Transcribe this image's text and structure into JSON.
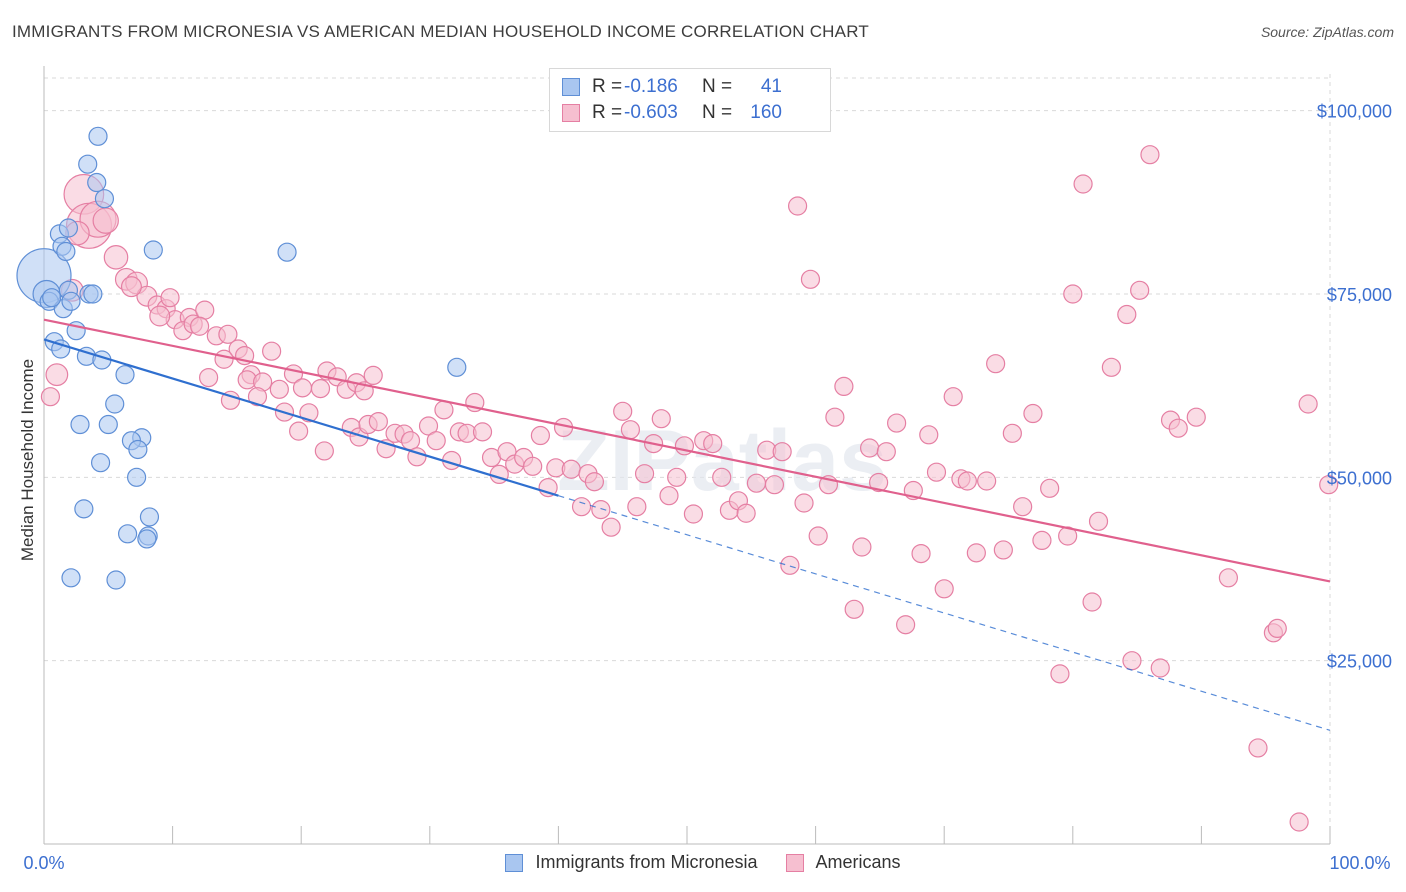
{
  "title": "IMMIGRANTS FROM MICRONESIA VS AMERICAN MEDIAN HOUSEHOLD INCOME CORRELATION CHART",
  "source": "Source: ZipAtlas.com",
  "watermark": "ZIPatlas",
  "colors": {
    "blue_fill": "#a9c6f0",
    "blue_stroke": "#5f8fd6",
    "blue_line": "#2f6fcf",
    "pink_fill": "#f6bfd0",
    "pink_stroke": "#e57fa3",
    "pink_line": "#e0608d",
    "tick_text": "#3c6fd0",
    "grid": "#d9d9d9"
  },
  "legend_top": {
    "rows": [
      {
        "r_label": "R =",
        "r_value": "-0.186",
        "n_label": "N =",
        "n_value": "41"
      },
      {
        "r_label": "R =",
        "r_value": "-0.603",
        "n_label": "N =",
        "n_value": "160"
      }
    ]
  },
  "legend_bottom": {
    "items": [
      {
        "label": "Immigrants from Micronesia"
      },
      {
        "label": "Americans"
      }
    ]
  },
  "chart_data": {
    "type": "scatter",
    "title": "IMMIGRANTS FROM MICRONESIA VS AMERICAN MEDIAN HOUSEHOLD INCOME CORRELATION CHART",
    "xlabel": "",
    "ylabel": "Median Household Income",
    "xlim": [
      0,
      100
    ],
    "ylim": [
      0,
      105000
    ],
    "x_tick_labels": [
      "0.0%",
      "100.0%"
    ],
    "y_ticks": [
      25000,
      50000,
      75000,
      100000
    ],
    "y_tick_labels": [
      "$25,000",
      "$50,000",
      "$75,000",
      "$100,000"
    ],
    "grid": true,
    "legend_position": "top-center and bottom",
    "series": [
      {
        "name": "Immigrants from Micronesia",
        "r": -0.186,
        "n": 41,
        "trend": {
          "x0": 0,
          "y0": 68800,
          "x1": 40,
          "y1": 47500,
          "dash_to_x": 100,
          "dash_y": 15500
        },
        "points": [
          [
            0.0,
            77500,
            3
          ],
          [
            0.2,
            75000,
            1.5
          ],
          [
            0.4,
            74000,
            1
          ],
          [
            1.2,
            83200,
            1
          ],
          [
            1.4,
            81500,
            1
          ],
          [
            1.7,
            80800,
            1
          ],
          [
            1.9,
            75500,
            1
          ],
          [
            1.5,
            73000,
            1
          ],
          [
            2.1,
            74000,
            1
          ],
          [
            2.5,
            70000,
            1
          ],
          [
            0.8,
            68500,
            1
          ],
          [
            1.3,
            67500,
            1
          ],
          [
            3.3,
            66500,
            1
          ],
          [
            4.5,
            66000,
            1
          ],
          [
            6.3,
            64000,
            1
          ],
          [
            3.5,
            75000,
            1
          ],
          [
            3.8,
            75000,
            1
          ],
          [
            4.2,
            96500,
            1
          ],
          [
            3.4,
            92700,
            1
          ],
          [
            4.1,
            90200,
            1
          ],
          [
            4.7,
            88000,
            1
          ],
          [
            8.5,
            81000,
            1
          ],
          [
            18.9,
            80700,
            1
          ],
          [
            32.1,
            65000,
            1
          ],
          [
            5.5,
            60000,
            1
          ],
          [
            2.8,
            57200,
            1
          ],
          [
            5.0,
            57200,
            1
          ],
          [
            7.6,
            55400,
            1
          ],
          [
            6.8,
            55000,
            1
          ],
          [
            7.3,
            53800,
            1
          ],
          [
            4.4,
            52000,
            1
          ],
          [
            7.2,
            50000,
            1
          ],
          [
            3.1,
            45700,
            1
          ],
          [
            8.2,
            44600,
            1
          ],
          [
            8.1,
            42000,
            1
          ],
          [
            6.5,
            42300,
            1
          ],
          [
            2.1,
            36300,
            1
          ],
          [
            5.6,
            36000,
            1
          ],
          [
            8.0,
            41600,
            1
          ],
          [
            1.9,
            84000,
            1
          ],
          [
            0.6,
            74500,
            1
          ]
        ]
      },
      {
        "name": "Americans",
        "r": -0.603,
        "n": 160,
        "trend": {
          "x0": 0,
          "y0": 71500,
          "x1": 100,
          "y1": 35800
        },
        "points": [
          [
            3.1,
            88600,
            2.2
          ],
          [
            3.5,
            84300,
            2.5
          ],
          [
            4.2,
            85200,
            2
          ],
          [
            4.8,
            85000,
            1.4
          ],
          [
            2.6,
            83300,
            1.3
          ],
          [
            5.6,
            80000,
            1.3
          ],
          [
            6.4,
            77000,
            1.2
          ],
          [
            7.2,
            76500,
            1.2
          ],
          [
            8.0,
            74700,
            1.1
          ],
          [
            8.8,
            73500,
            1
          ],
          [
            9.5,
            73000,
            1
          ],
          [
            10.2,
            71500,
            1
          ],
          [
            11.3,
            71800,
            1
          ],
          [
            12.5,
            72800,
            1
          ],
          [
            10.8,
            70000,
            1
          ],
          [
            11.6,
            70900,
            1
          ],
          [
            12.1,
            70600,
            1
          ],
          [
            13.4,
            69300,
            1
          ],
          [
            14.3,
            69500,
            1
          ],
          [
            15.1,
            67500,
            1
          ],
          [
            14.0,
            66100,
            1
          ],
          [
            15.6,
            66600,
            1
          ],
          [
            17.7,
            67200,
            1
          ],
          [
            16.1,
            64000,
            1
          ],
          [
            12.8,
            63600,
            1
          ],
          [
            15.8,
            63300,
            1
          ],
          [
            17.0,
            63000,
            1
          ],
          [
            18.3,
            62000,
            1
          ],
          [
            19.4,
            64100,
            1
          ],
          [
            20.1,
            62200,
            1
          ],
          [
            21.5,
            62100,
            1
          ],
          [
            22.0,
            64500,
            1
          ],
          [
            22.8,
            63700,
            1
          ],
          [
            23.5,
            62000,
            1
          ],
          [
            24.3,
            62900,
            1
          ],
          [
            24.9,
            61800,
            1
          ],
          [
            25.6,
            63900,
            1
          ],
          [
            18.7,
            58900,
            1
          ],
          [
            19.8,
            56300,
            1
          ],
          [
            23.9,
            56800,
            1
          ],
          [
            24.5,
            55500,
            1
          ],
          [
            25.2,
            57200,
            1
          ],
          [
            26.0,
            57600,
            1
          ],
          [
            26.6,
            53900,
            1
          ],
          [
            27.3,
            56000,
            1
          ],
          [
            28.0,
            55900,
            1
          ],
          [
            28.5,
            55000,
            1
          ],
          [
            29.0,
            52800,
            1
          ],
          [
            29.9,
            57000,
            1
          ],
          [
            30.5,
            55000,
            1
          ],
          [
            31.1,
            59200,
            1
          ],
          [
            31.7,
            52300,
            1
          ],
          [
            32.3,
            56200,
            1
          ],
          [
            32.9,
            56000,
            1
          ],
          [
            33.5,
            60200,
            1
          ],
          [
            34.1,
            56200,
            1
          ],
          [
            34.8,
            52700,
            1
          ],
          [
            35.4,
            50400,
            1
          ],
          [
            36.0,
            53500,
            1
          ],
          [
            36.6,
            51800,
            1
          ],
          [
            37.3,
            52700,
            1
          ],
          [
            38.0,
            51500,
            1
          ],
          [
            38.6,
            55700,
            1
          ],
          [
            39.2,
            48600,
            1
          ],
          [
            39.8,
            51300,
            1
          ],
          [
            40.4,
            56800,
            1
          ],
          [
            41.0,
            51100,
            1
          ],
          [
            41.8,
            46000,
            1
          ],
          [
            42.3,
            50500,
            1
          ],
          [
            42.8,
            49400,
            1
          ],
          [
            43.3,
            45600,
            1
          ],
          [
            44.1,
            43200,
            1
          ],
          [
            45.0,
            59000,
            1
          ],
          [
            45.6,
            56500,
            1
          ],
          [
            46.1,
            46000,
            1
          ],
          [
            46.7,
            50500,
            1
          ],
          [
            47.4,
            54600,
            1
          ],
          [
            48.0,
            58000,
            1
          ],
          [
            48.6,
            47500,
            1
          ],
          [
            49.2,
            50000,
            1
          ],
          [
            49.8,
            54300,
            1
          ],
          [
            50.5,
            45000,
            1
          ],
          [
            51.3,
            55000,
            1
          ],
          [
            52.0,
            54600,
            1
          ],
          [
            52.7,
            50000,
            1
          ],
          [
            53.3,
            45500,
            1
          ],
          [
            54.0,
            46800,
            1
          ],
          [
            54.6,
            45100,
            1
          ],
          [
            55.4,
            49200,
            1
          ],
          [
            56.2,
            53700,
            1
          ],
          [
            56.8,
            49000,
            1
          ],
          [
            57.4,
            53500,
            1
          ],
          [
            58.0,
            38000,
            1
          ],
          [
            58.6,
            87000,
            1
          ],
          [
            59.1,
            46500,
            1
          ],
          [
            59.6,
            77000,
            1
          ],
          [
            60.2,
            42000,
            1
          ],
          [
            61.0,
            49000,
            1
          ],
          [
            61.5,
            58200,
            1
          ],
          [
            62.2,
            62400,
            1
          ],
          [
            63.0,
            32000,
            1
          ],
          [
            63.6,
            40500,
            1
          ],
          [
            64.2,
            54000,
            1
          ],
          [
            64.9,
            49300,
            1
          ],
          [
            65.5,
            53500,
            1
          ],
          [
            66.3,
            57400,
            1
          ],
          [
            67.0,
            29900,
            1
          ],
          [
            67.6,
            48200,
            1
          ],
          [
            68.2,
            39600,
            1
          ],
          [
            68.8,
            55800,
            1
          ],
          [
            69.4,
            50700,
            1
          ],
          [
            70.0,
            34800,
            1
          ],
          [
            70.7,
            61000,
            1
          ],
          [
            71.3,
            49800,
            1
          ],
          [
            71.8,
            49500,
            1
          ],
          [
            72.5,
            39700,
            1
          ],
          [
            73.3,
            49500,
            1
          ],
          [
            74.0,
            65500,
            1
          ],
          [
            74.6,
            40100,
            1
          ],
          [
            75.3,
            56000,
            1
          ],
          [
            76.1,
            46000,
            1
          ],
          [
            76.9,
            58700,
            1
          ],
          [
            77.6,
            41400,
            1
          ],
          [
            78.2,
            48500,
            1
          ],
          [
            79.0,
            23200,
            1
          ],
          [
            79.6,
            42000,
            1
          ],
          [
            80.0,
            75000,
            1
          ],
          [
            80.8,
            90000,
            1
          ],
          [
            81.5,
            33000,
            1
          ],
          [
            82.0,
            44000,
            1
          ],
          [
            83.0,
            65000,
            1
          ],
          [
            84.2,
            72200,
            1
          ],
          [
            85.2,
            75500,
            1
          ],
          [
            86.0,
            94000,
            1
          ],
          [
            84.6,
            25000,
            1
          ],
          [
            86.8,
            24000,
            1
          ],
          [
            87.6,
            57800,
            1
          ],
          [
            88.2,
            56700,
            1
          ],
          [
            89.6,
            58200,
            1
          ],
          [
            92.1,
            36300,
            1
          ],
          [
            94.4,
            13100,
            1
          ],
          [
            95.6,
            28800,
            1
          ],
          [
            95.9,
            29400,
            1
          ],
          [
            97.6,
            3000,
            1
          ],
          [
            98.3,
            60000,
            1
          ],
          [
            99.9,
            49000,
            1
          ],
          [
            0.5,
            61000,
            1
          ],
          [
            1.0,
            64000,
            1.2
          ],
          [
            2.2,
            75500,
            1.2
          ],
          [
            6.8,
            76000,
            1.1
          ],
          [
            9.0,
            72000,
            1.1
          ],
          [
            9.8,
            74500,
            1
          ],
          [
            14.5,
            60500,
            1
          ],
          [
            16.6,
            61000,
            1
          ],
          [
            20.6,
            58800,
            1
          ],
          [
            21.8,
            53600,
            1
          ]
        ]
      }
    ]
  }
}
